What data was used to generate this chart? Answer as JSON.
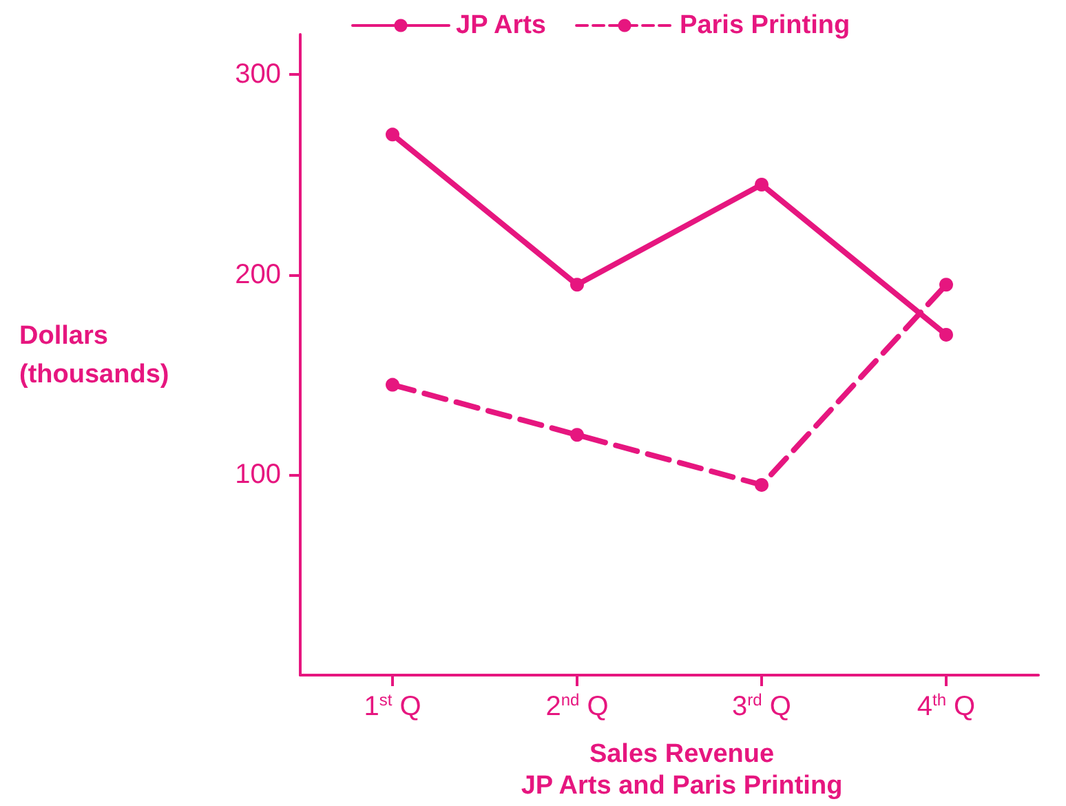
{
  "chart_data": {
    "type": "line",
    "title": "Sales Revenue",
    "subtitle": "JP Arts and Paris Printing",
    "ylabel": "Dollars (thousands)",
    "categories": [
      "1$^{st}$ Q",
      "2$^{nd}$ Q",
      "3$^{rd}$ Q",
      "4$^{th}$ Q"
    ],
    "series": [
      {
        "name": "JP Arts",
        "color": "#e6167f",
        "line_style": "solid",
        "values": [
          270,
          195,
          245,
          170
        ]
      },
      {
        "name": "Paris Printing",
        "color": "#e6167f",
        "line_style": "dashed",
        "values": [
          145,
          120,
          95,
          195
        ]
      }
    ],
    "ylim": [
      0,
      320
    ],
    "yticks": [
      100,
      200,
      300
    ],
    "grid": false,
    "legend": "top",
    "marker": "circle"
  }
}
